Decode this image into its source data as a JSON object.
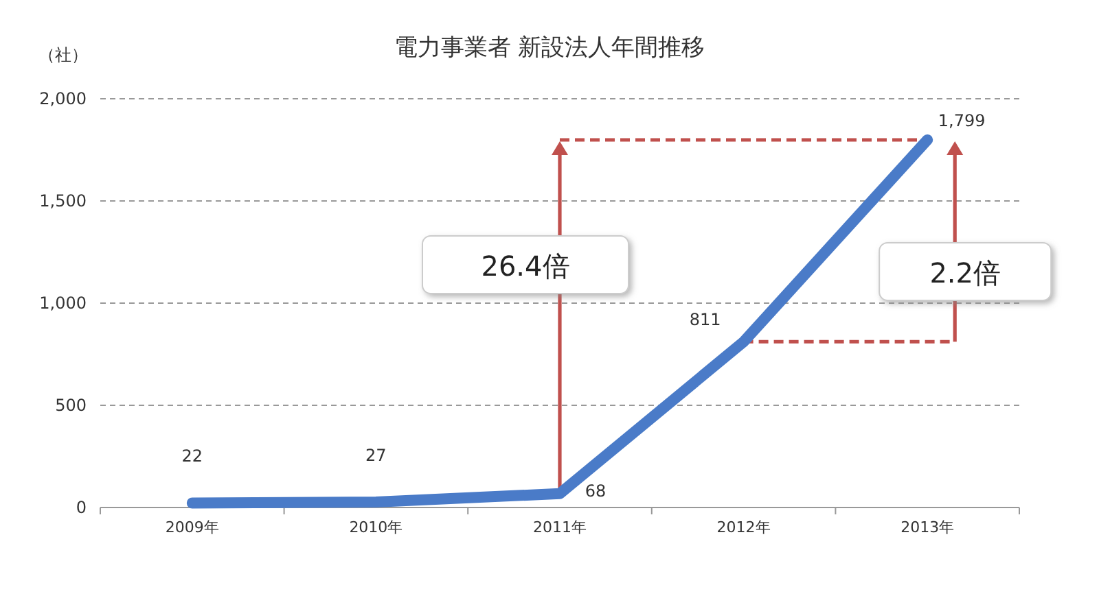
{
  "chart_data": {
    "type": "line",
    "title": "電力事業者 新設法人年間推移",
    "ylabel": "（社）",
    "categories": [
      "2009年",
      "2010年",
      "2011年",
      "2012年",
      "2013年"
    ],
    "series": [
      {
        "color": "#4a7bc8",
        "values": [
          22,
          27,
          68,
          811,
          1799
        ],
        "value_labels": [
          "22",
          "27",
          "68",
          "811",
          "1,799"
        ]
      }
    ],
    "ylim": [
      0,
      2000
    ],
    "yticks": [
      0,
      500,
      {
        "value": 1000,
        "label": "1,000"
      },
      {
        "value": 1500,
        "label": "1,500"
      },
      {
        "value": 2000,
        "label": "2,000"
      }
    ],
    "grid": "y",
    "marker": "none",
    "line_style": "solid",
    "annotations": [
      "26.4倍",
      "2.2倍"
    ]
  }
}
